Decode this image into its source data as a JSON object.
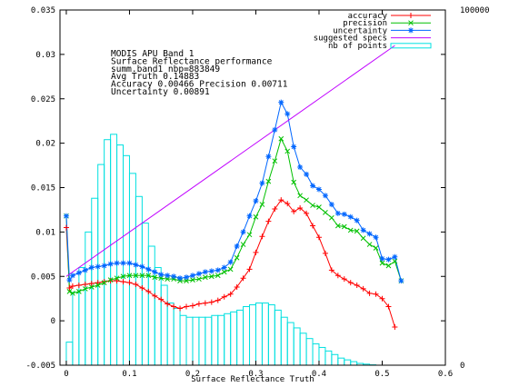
{
  "chart_data": {
    "type": "line",
    "title": "",
    "xlabel": "Surface Reflectance Truth",
    "ylabel": "",
    "xlim": [
      -0.01,
      0.6
    ],
    "ylim": [
      -0.005,
      0.035
    ],
    "y2lim": [
      0,
      100000
    ],
    "x_ticks": [
      "0",
      "0.1",
      "0.2",
      "0.3",
      "0.4",
      "0.5",
      "0.6"
    ],
    "x_tick_values": [
      0,
      0.1,
      0.2,
      0.3,
      0.4,
      0.5,
      0.6
    ],
    "y_ticks": [
      "-0.005",
      "0",
      "0.005",
      "0.01",
      "0.015",
      "0.02",
      "0.025",
      "0.03",
      "0.035"
    ],
    "y_tick_values": [
      -0.005,
      0,
      0.005,
      0.01,
      0.015,
      0.02,
      0.025,
      0.03,
      0.035
    ],
    "y2_ticks": [
      "0",
      "100000"
    ],
    "y2_tick_values": [
      0,
      100000
    ],
    "grid": false,
    "legend_position": "top-right",
    "info_text": [
      "MODIS APU Band 1",
      "Surface Reflectance performance",
      "summ.band1 nbp=883849",
      "Avg Truth 0.14883",
      "Accuracy 0.00466 Precision 0.00711",
      "Uncertainty 0.00891"
    ],
    "series": [
      {
        "name": "accuracy",
        "type": "line",
        "color": "#ff0000",
        "marker": "plus",
        "x": [
          0.0,
          0.005,
          0.01,
          0.02,
          0.03,
          0.04,
          0.05,
          0.06,
          0.07,
          0.08,
          0.09,
          0.1,
          0.11,
          0.12,
          0.13,
          0.14,
          0.15,
          0.16,
          0.17,
          0.18,
          0.19,
          0.2,
          0.21,
          0.22,
          0.23,
          0.24,
          0.25,
          0.26,
          0.27,
          0.28,
          0.29,
          0.3,
          0.31,
          0.32,
          0.33,
          0.34,
          0.35,
          0.36,
          0.37,
          0.38,
          0.39,
          0.4,
          0.41,
          0.42,
          0.43,
          0.44,
          0.45,
          0.46,
          0.47,
          0.48,
          0.49,
          0.5,
          0.51,
          0.52
        ],
        "values": [
          0.0105,
          0.0037,
          0.0039,
          0.004,
          0.0041,
          0.0042,
          0.0043,
          0.0044,
          0.0045,
          0.0045,
          0.0044,
          0.0043,
          0.0041,
          0.0037,
          0.0033,
          0.0028,
          0.0024,
          0.0019,
          0.0016,
          0.0014,
          0.0016,
          0.0017,
          0.0019,
          0.002,
          0.0021,
          0.0023,
          0.0027,
          0.003,
          0.0038,
          0.0048,
          0.0058,
          0.0077,
          0.0095,
          0.0112,
          0.0126,
          0.0136,
          0.0132,
          0.0123,
          0.0127,
          0.0121,
          0.0107,
          0.0094,
          0.0076,
          0.0057,
          0.0051,
          0.0047,
          0.0043,
          0.004,
          0.0036,
          0.0031,
          0.003,
          0.0025,
          0.0016,
          -0.0007
        ]
      },
      {
        "name": "precision",
        "type": "line",
        "color": "#00c000",
        "marker": "cross",
        "x": [
          0.0,
          0.005,
          0.01,
          0.02,
          0.03,
          0.04,
          0.05,
          0.06,
          0.07,
          0.08,
          0.09,
          0.1,
          0.11,
          0.12,
          0.13,
          0.14,
          0.15,
          0.16,
          0.17,
          0.18,
          0.19,
          0.2,
          0.21,
          0.22,
          0.23,
          0.24,
          0.25,
          0.26,
          0.27,
          0.28,
          0.29,
          0.3,
          0.31,
          0.32,
          0.33,
          0.34,
          0.35,
          0.36,
          0.37,
          0.38,
          0.39,
          0.4,
          0.41,
          0.42,
          0.43,
          0.44,
          0.45,
          0.46,
          0.47,
          0.48,
          0.49,
          0.5,
          0.51,
          0.52,
          0.53
        ],
        "values": [
          0.0118,
          0.0033,
          0.0031,
          0.0033,
          0.0036,
          0.0038,
          0.004,
          0.0043,
          0.0046,
          0.0048,
          0.005,
          0.0051,
          0.0051,
          0.0051,
          0.0051,
          0.0049,
          0.0048,
          0.0047,
          0.0047,
          0.0045,
          0.0045,
          0.0046,
          0.0047,
          0.0049,
          0.005,
          0.0051,
          0.0055,
          0.0058,
          0.0071,
          0.0086,
          0.0097,
          0.0117,
          0.0131,
          0.0157,
          0.018,
          0.0205,
          0.0191,
          0.0156,
          0.0141,
          0.0136,
          0.013,
          0.0128,
          0.0122,
          0.0116,
          0.0107,
          0.0106,
          0.0102,
          0.0101,
          0.0093,
          0.0086,
          0.0082,
          0.0065,
          0.0062,
          0.0067,
          0.0045
        ]
      },
      {
        "name": "uncertainty",
        "type": "line",
        "color": "#0066ff",
        "marker": "star",
        "x": [
          0.0,
          0.005,
          0.01,
          0.02,
          0.03,
          0.04,
          0.05,
          0.06,
          0.07,
          0.08,
          0.09,
          0.1,
          0.11,
          0.12,
          0.13,
          0.14,
          0.15,
          0.16,
          0.17,
          0.18,
          0.19,
          0.2,
          0.21,
          0.22,
          0.23,
          0.24,
          0.25,
          0.26,
          0.27,
          0.28,
          0.29,
          0.3,
          0.31,
          0.32,
          0.33,
          0.34,
          0.35,
          0.36,
          0.37,
          0.38,
          0.39,
          0.4,
          0.41,
          0.42,
          0.43,
          0.44,
          0.45,
          0.46,
          0.47,
          0.48,
          0.49,
          0.5,
          0.51,
          0.52,
          0.53
        ],
        "values": [
          0.0118,
          0.0046,
          0.0051,
          0.0054,
          0.0057,
          0.006,
          0.0061,
          0.0062,
          0.0064,
          0.0065,
          0.0065,
          0.0065,
          0.0063,
          0.0061,
          0.0058,
          0.0055,
          0.0052,
          0.0051,
          0.005,
          0.0048,
          0.0049,
          0.0051,
          0.0053,
          0.0055,
          0.0056,
          0.0057,
          0.006,
          0.0066,
          0.0084,
          0.01,
          0.0118,
          0.0135,
          0.0155,
          0.0185,
          0.0215,
          0.0246,
          0.0233,
          0.0196,
          0.0173,
          0.0165,
          0.0152,
          0.0148,
          0.0141,
          0.0131,
          0.0121,
          0.012,
          0.0117,
          0.0113,
          0.0102,
          0.0098,
          0.0094,
          0.007,
          0.0069,
          0.0072,
          0.0045
        ]
      },
      {
        "name": "suggested specs",
        "type": "line",
        "color": "#c000ff",
        "marker": "none",
        "x": [
          0.0,
          0.52
        ],
        "values": [
          0.005,
          0.031
        ]
      },
      {
        "name": "nb of points",
        "type": "bar",
        "axis": "right",
        "color": "#00e0e0",
        "bin_width": 0.01,
        "x": [
          0.0,
          0.01,
          0.02,
          0.03,
          0.04,
          0.05,
          0.06,
          0.07,
          0.08,
          0.09,
          0.1,
          0.11,
          0.12,
          0.13,
          0.14,
          0.15,
          0.16,
          0.17,
          0.18,
          0.19,
          0.2,
          0.21,
          0.22,
          0.23,
          0.24,
          0.25,
          0.26,
          0.27,
          0.28,
          0.29,
          0.3,
          0.31,
          0.32,
          0.33,
          0.34,
          0.35,
          0.36,
          0.37,
          0.38,
          0.39,
          0.4,
          0.41,
          0.42,
          0.43,
          0.44,
          0.45,
          0.46,
          0.47,
          0.48
        ],
        "values": [
          6500,
          20500,
          27500,
          37500,
          47000,
          56500,
          63500,
          65000,
          62000,
          59000,
          54000,
          47500,
          40000,
          33500,
          27500,
          22500,
          17500,
          16000,
          14000,
          13500,
          13500,
          13500,
          13500,
          14000,
          14000,
          14500,
          15000,
          15500,
          16500,
          17000,
          17500,
          17500,
          17000,
          15500,
          13500,
          12000,
          10500,
          9000,
          7500,
          6000,
          5000,
          4000,
          3000,
          2000,
          1500,
          1000,
          500,
          300,
          100
        ]
      }
    ]
  }
}
